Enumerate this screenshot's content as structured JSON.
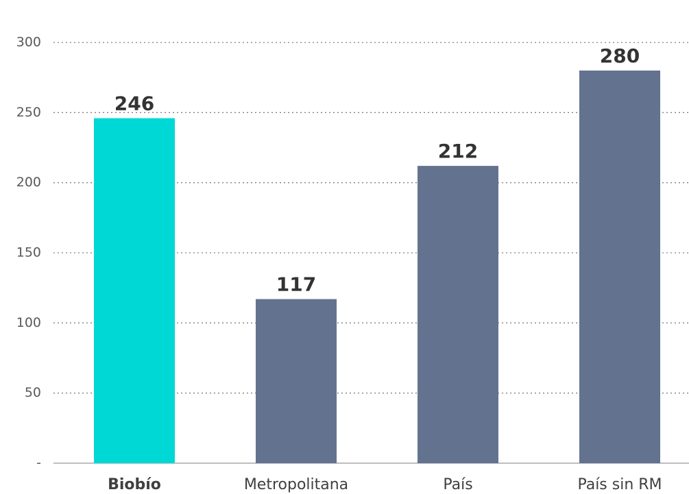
{
  "chart_data": {
    "type": "bar",
    "categories": [
      "Biobío",
      "Metropolitana",
      "País",
      "País sin RM"
    ],
    "values": [
      246,
      117,
      212,
      280
    ],
    "colors": [
      "#00d8d6",
      "#63728e",
      "#63728e",
      "#63728e"
    ],
    "highlight_index": 0,
    "ylim": [
      0,
      300
    ],
    "yticks": [
      {
        "value": 0,
        "label": "-"
      },
      50,
      100,
      150,
      200,
      250,
      300
    ],
    "grid": true
  }
}
